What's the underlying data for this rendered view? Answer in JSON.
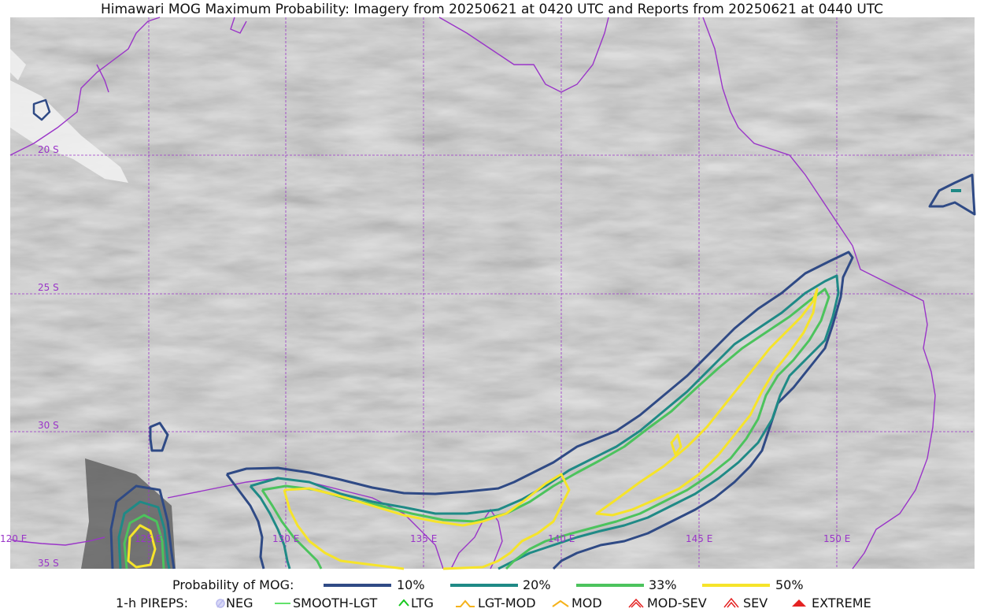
{
  "title": "Himawari MOG Maximum Probability: Imagery from 20250621 at 0420 UTC and Reports from 20250621 at 0440 UTC",
  "map": {
    "latitude_labels": [
      "20 S",
      "25 S",
      "30 S",
      "35 S"
    ],
    "longitude_labels": [
      "120 E",
      "125 E",
      "130 E",
      "135 E",
      "140 E",
      "145 E",
      "150 E"
    ],
    "gridline_color": "#9a35c8",
    "coastline_color": "#9a35c8",
    "background": "grayscale satellite imagery"
  },
  "legend": {
    "probability_label": "Probability of MOG:",
    "contours": [
      {
        "label": "10%",
        "color": "#2f4a85"
      },
      {
        "label": "20%",
        "color": "#1f8a86"
      },
      {
        "label": "33%",
        "color": "#4cc35d"
      },
      {
        "label": "50%",
        "color": "#f6e42a"
      }
    ],
    "pireps_label": "1-h PIREPS:",
    "pireps": [
      {
        "label": "NEG",
        "icon": "neg-icon",
        "color": "#b9b9ee"
      },
      {
        "label": "SMOOTH-LGT",
        "icon": "smooth-lgt-icon",
        "color": "#2fd83a"
      },
      {
        "label": "LTG",
        "icon": "ltg-icon",
        "color": "#18c81f"
      },
      {
        "label": "LGT-MOD",
        "icon": "lgt-mod-icon",
        "color": "#f5b21a"
      },
      {
        "label": "MOD",
        "icon": "mod-icon",
        "color": "#f5b21a"
      },
      {
        "label": "MOD-SEV",
        "icon": "mod-sev-icon",
        "color": "#e42222"
      },
      {
        "label": "SEV",
        "icon": "sev-icon",
        "color": "#e42222"
      },
      {
        "label": "EXTREME",
        "icon": "extreme-icon",
        "color": "#e42222"
      }
    ]
  }
}
